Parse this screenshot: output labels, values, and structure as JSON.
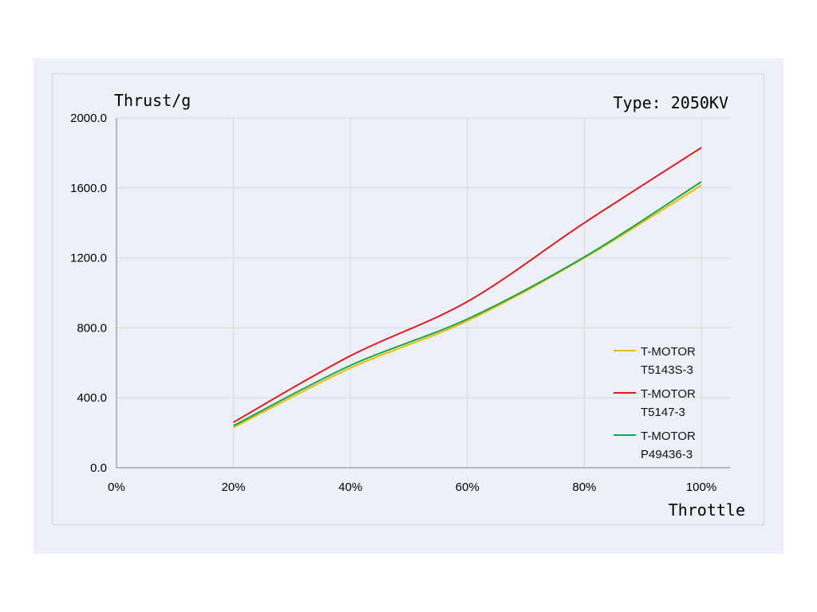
{
  "chart_data": {
    "type": "line",
    "title": "Type: 2050KV",
    "ylabel": "Thrust/g",
    "xlabel": "Throttle",
    "x_ticks": [
      "0%",
      "20%",
      "40%",
      "60%",
      "80%",
      "100%"
    ],
    "y_ticks": [
      "0.0",
      "400.0",
      "800.0",
      "1200.0",
      "1600.0",
      "2000.0"
    ],
    "xlim": [
      0,
      100
    ],
    "ylim": [
      0,
      2000
    ],
    "grid": true,
    "legend_position": "bottom-right",
    "x": [
      20,
      40,
      60,
      80,
      100
    ],
    "series": [
      {
        "name": [
          "T-MOTOR",
          "T5143S-3"
        ],
        "color": "#f2b800",
        "values": [
          230,
          570,
          840,
          1200,
          1615
        ]
      },
      {
        "name": [
          "T-MOTOR",
          "T5147-3"
        ],
        "color": "#e8161b",
        "values": [
          260,
          640,
          950,
          1400,
          1830
        ]
      },
      {
        "name": [
          "T-MOTOR",
          "P49436-3"
        ],
        "color": "#12a84a",
        "values": [
          240,
          585,
          850,
          1205,
          1635
        ]
      }
    ]
  }
}
